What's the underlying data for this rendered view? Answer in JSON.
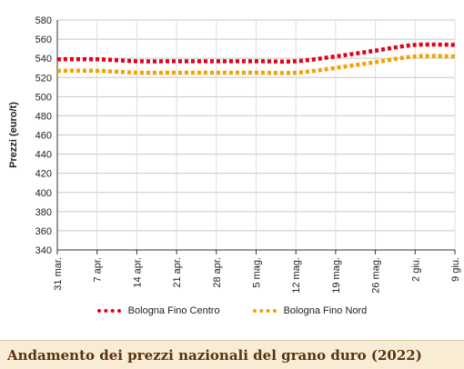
{
  "chart_data": {
    "type": "line",
    "title": "Andamento dei prezzi nazionali del grano duro (2022)",
    "ylabel": "Prezzi (euro/t)",
    "xlabel": "",
    "ylim": [
      340,
      580
    ],
    "yticks": [
      340,
      360,
      380,
      400,
      420,
      440,
      460,
      480,
      500,
      520,
      540,
      560,
      580
    ],
    "categories": [
      "31 mar.",
      "7 apr.",
      "14 apr.",
      "21 apr.",
      "28 apr.",
      "5 mag.",
      "12 mag.",
      "19 mag.",
      "26 mag.",
      "2 giu.",
      "9 giu."
    ],
    "grid": "horizontal",
    "legend_position": "bottom",
    "series": [
      {
        "name": "Bologna Fino Centro",
        "color": "#e2001a",
        "values": [
          539,
          539,
          537,
          537,
          537,
          537,
          537,
          542,
          548,
          554,
          554
        ]
      },
      {
        "name": "Bologna Fino Nord",
        "color": "#f5a200",
        "values": [
          527,
          527,
          525,
          525,
          525,
          525,
          525,
          530,
          536,
          542,
          542
        ]
      }
    ]
  }
}
